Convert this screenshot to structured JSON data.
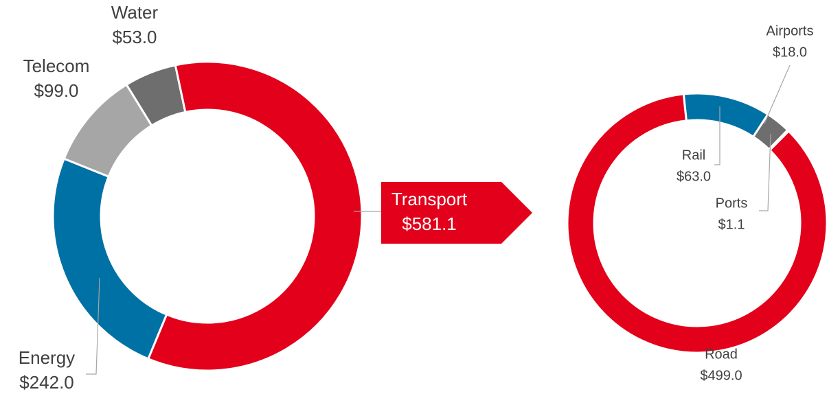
{
  "chart_data": [
    {
      "type": "donut",
      "categories": [
        "Transport",
        "Energy",
        "Telecom",
        "Water"
      ],
      "values": [
        581.1,
        242.0,
        99.0,
        53.0
      ],
      "value_labels": [
        "$581.1",
        "$242.0",
        "$99.0",
        "$53.0"
      ],
      "colors": [
        "#e2001a",
        "#0071a4",
        "#a6a6a6",
        "#6d6e6d"
      ]
    },
    {
      "type": "donut",
      "categories": [
        "Rail",
        "Airports",
        "Ports",
        "Road"
      ],
      "values": [
        63.0,
        18.0,
        1.1,
        499.0
      ],
      "value_labels": [
        "$63.0",
        "$18.0",
        "$1.1",
        "$499.0"
      ],
      "colors": [
        "#0071a4",
        "#6d6e6d",
        "#6d6e6d",
        "#e2001a"
      ]
    }
  ]
}
